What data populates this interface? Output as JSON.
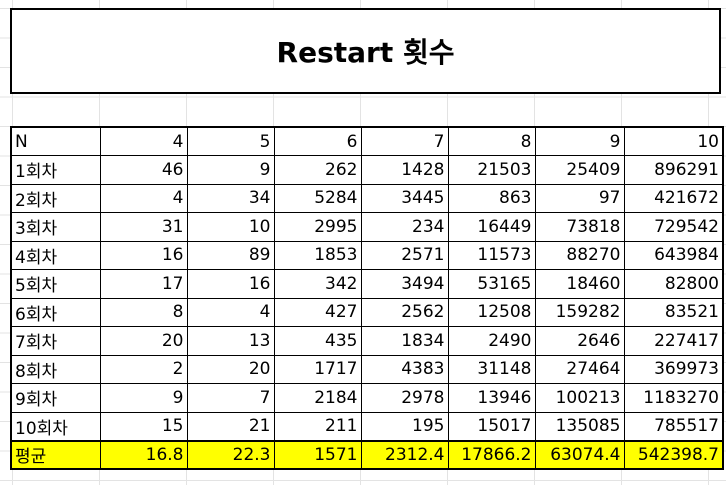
{
  "title": "Restart 횟수",
  "table": {
    "header": [
      "N",
      "4",
      "5",
      "6",
      "7",
      "8",
      "9",
      "10"
    ],
    "rows": [
      [
        "1회차",
        "46",
        "9",
        "262",
        "1428",
        "21503",
        "25409",
        "896291"
      ],
      [
        "2회차",
        "4",
        "34",
        "5284",
        "3445",
        "863",
        "97",
        "421672"
      ],
      [
        "3회차",
        "31",
        "10",
        "2995",
        "234",
        "16449",
        "73818",
        "729542"
      ],
      [
        "4회차",
        "16",
        "89",
        "1853",
        "2571",
        "11573",
        "88270",
        "643984"
      ],
      [
        "5회차",
        "17",
        "16",
        "342",
        "3494",
        "53165",
        "18460",
        "82800"
      ],
      [
        "6회차",
        "8",
        "4",
        "427",
        "2562",
        "12508",
        "159282",
        "83521"
      ],
      [
        "7회차",
        "20",
        "13",
        "435",
        "1834",
        "2490",
        "2646",
        "227417"
      ],
      [
        "8회차",
        "2",
        "20",
        "1717",
        "4383",
        "31148",
        "27464",
        "369973"
      ],
      [
        "9회차",
        "9",
        "7",
        "2184",
        "2978",
        "13946",
        "100213",
        "1183270"
      ],
      [
        "10회차",
        "15",
        "21",
        "211",
        "195",
        "15017",
        "135085",
        "785517"
      ]
    ],
    "average": [
      "평균",
      "16.8",
      "22.3",
      "1571",
      "2312.4",
      "17866.2",
      "63074.4",
      "542398.7"
    ]
  },
  "colors": {
    "average_row": "#ffff00"
  }
}
